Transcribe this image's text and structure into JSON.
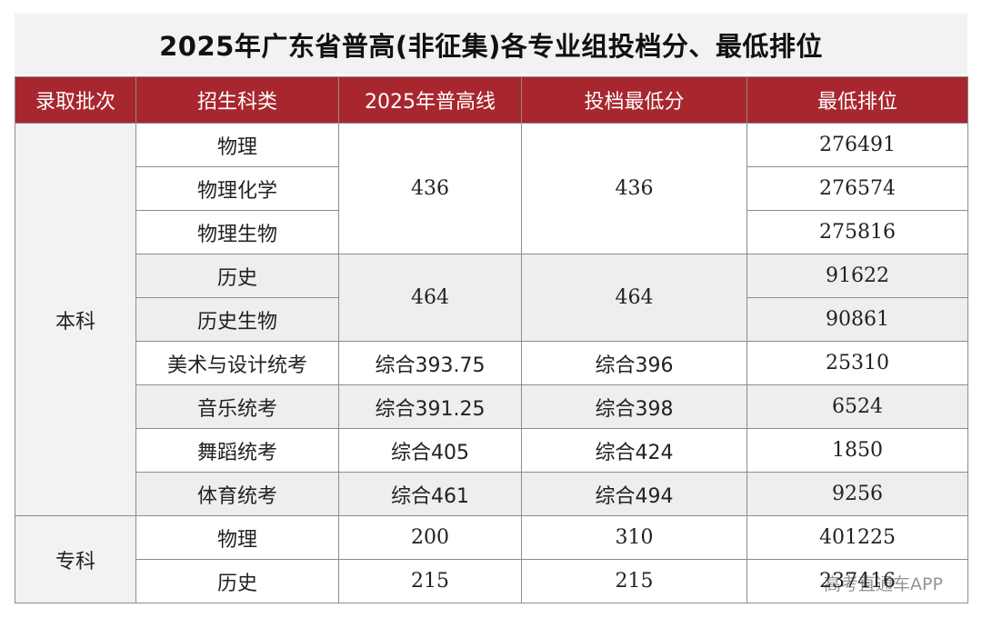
{
  "title": "2025年广东省普高(非征集)各专业组投档分、最低排位",
  "headers": [
    "录取批次",
    "招生科类",
    "2025年普高线",
    "投档最低分",
    "最低排位"
  ],
  "batches": {
    "benke": "本科",
    "zhuanke": "专科"
  },
  "rows": [
    {
      "subject": "物理",
      "line": "436",
      "min_score": "436",
      "rank": "276491"
    },
    {
      "subject": "物理化学",
      "line": "436",
      "min_score": "436",
      "rank": "276574"
    },
    {
      "subject": "物理生物",
      "line": "436",
      "min_score": "436",
      "rank": "275816"
    },
    {
      "subject": "历史",
      "line": "464",
      "min_score": "464",
      "rank": "91622"
    },
    {
      "subject": "历史生物",
      "line": "464",
      "min_score": "464",
      "rank": "90861"
    },
    {
      "subject": "美术与设计统考",
      "line": "综合393.75",
      "min_score": "综合396",
      "rank": "25310"
    },
    {
      "subject": "音乐统考",
      "line": "综合391.25",
      "min_score": "综合398",
      "rank": "6524"
    },
    {
      "subject": "舞蹈统考",
      "line": "综合405",
      "min_score": "综合424",
      "rank": "1850"
    },
    {
      "subject": "体育统考",
      "line": "综合461",
      "min_score": "综合494",
      "rank": "9256"
    },
    {
      "subject": "物理",
      "line": "200",
      "min_score": "310",
      "rank": "401225"
    },
    {
      "subject": "历史",
      "line": "215",
      "min_score": "215",
      "rank": "237416"
    }
  ],
  "watermark": "高考直通车APP"
}
